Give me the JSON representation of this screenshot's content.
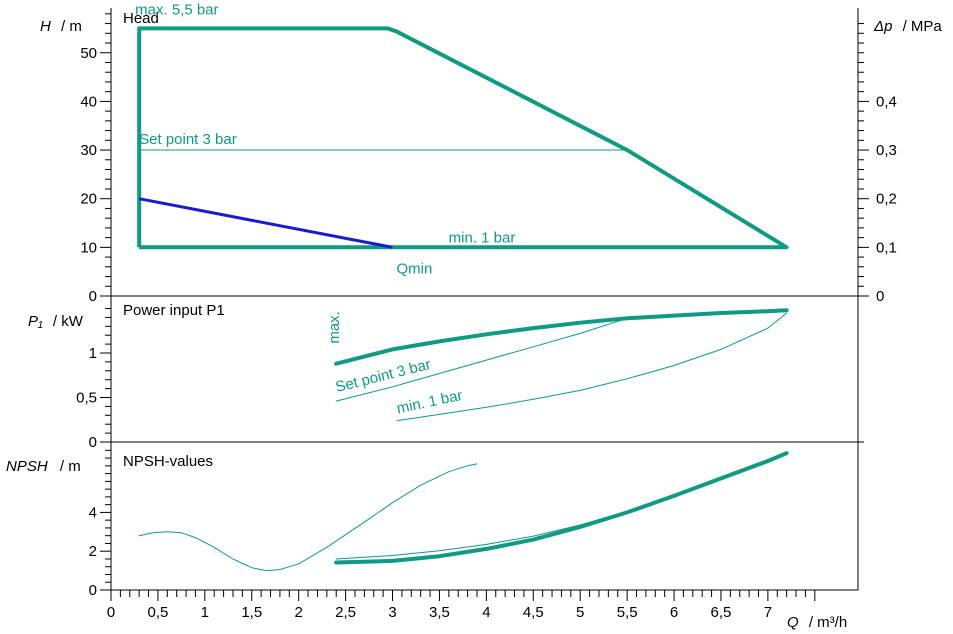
{
  "colors": {
    "teal": "#109a84",
    "blue": "#1a1ad6",
    "axis": "#000000"
  },
  "chart_data": [
    {
      "type": "line",
      "title": "Head",
      "ylabel": "H",
      "yunit": "/ m",
      "y2label": "Δp",
      "y2unit": "/ MPa",
      "xlim": [
        0,
        7.6
      ],
      "ylim": [
        0,
        57.5
      ],
      "yticks": [
        0,
        10,
        20,
        30,
        40,
        50
      ],
      "ytick_labels": [
        "0",
        "10",
        "20",
        "30",
        "40",
        "50"
      ],
      "y2ticks": [
        0,
        0.1,
        0.2,
        0.3,
        0.4
      ],
      "y2tick_labels": [
        "0",
        "0,1",
        "0,2",
        "0,3",
        "0,4"
      ],
      "series": [
        {
          "key": "max",
          "width": 4,
          "color": "teal",
          "points": [
            [
              0.3,
              10
            ],
            [
              0.3,
              55
            ],
            [
              2.95,
              55
            ],
            [
              3.05,
              54.3
            ],
            [
              5.5,
              30
            ],
            [
              7.2,
              10
            ],
            [
              0.3,
              10
            ]
          ]
        },
        {
          "key": "set",
          "width": 1,
          "color": "teal",
          "points": [
            [
              0.3,
              30
            ],
            [
              5.5,
              30
            ]
          ]
        },
        {
          "key": "qmin",
          "width": 3,
          "color": "blue",
          "points": [
            [
              0.3,
              20
            ],
            [
              3.0,
              10
            ]
          ]
        }
      ],
      "annotations": [
        {
          "text": "max. 5,5 bar",
          "x": 0.3,
          "y": 55,
          "color": "teal"
        },
        {
          "text": "Set point 3 bar",
          "x": 0.3,
          "y": 30,
          "color": "teal"
        },
        {
          "text": "min. 1 bar",
          "x": 3.3,
          "y": 10,
          "color": "teal"
        },
        {
          "text": "Qmin",
          "x": 3.0,
          "y": 10,
          "color": "teal"
        }
      ]
    },
    {
      "type": "line",
      "title": "Power input P1",
      "ylabel": "P₁",
      "yunit": "/ kW",
      "xlim": [
        0,
        7.6
      ],
      "ylim": [
        0,
        1.5
      ],
      "yticks": [
        0,
        0.5,
        1
      ],
      "ytick_labels": [
        "0",
        "0,5",
        "1"
      ],
      "series": [
        {
          "key": "max",
          "width": 4,
          "color": "teal",
          "points": [
            [
              2.4,
              0.88
            ],
            [
              3.0,
              1.04
            ],
            [
              3.5,
              1.13
            ],
            [
              4.0,
              1.21
            ],
            [
              4.5,
              1.28
            ],
            [
              5.0,
              1.34
            ],
            [
              5.5,
              1.39
            ],
            [
              6.0,
              1.42
            ],
            [
              6.5,
              1.45
            ],
            [
              7.0,
              1.47
            ],
            [
              7.2,
              1.48
            ]
          ]
        },
        {
          "key": "set",
          "width": 1,
          "color": "teal",
          "points": [
            [
              2.4,
              0.46
            ],
            [
              3.0,
              0.62
            ],
            [
              3.5,
              0.77
            ],
            [
              4.0,
              0.92
            ],
            [
              4.5,
              1.07
            ],
            [
              5.0,
              1.22
            ],
            [
              5.5,
              1.39
            ]
          ]
        },
        {
          "key": "min",
          "width": 1,
          "color": "teal",
          "points": [
            [
              3.05,
              0.24
            ],
            [
              3.5,
              0.31
            ],
            [
              4.0,
              0.39
            ],
            [
              4.5,
              0.48
            ],
            [
              5.0,
              0.58
            ],
            [
              5.5,
              0.71
            ],
            [
              6.0,
              0.86
            ],
            [
              6.5,
              1.04
            ],
            [
              7.0,
              1.28
            ],
            [
              7.2,
              1.45
            ]
          ]
        }
      ],
      "annotations": [
        {
          "text": "max.",
          "x": 2.45,
          "y": 1.15,
          "rotate": -90,
          "color": "teal"
        },
        {
          "text": "Set point 3 bar",
          "x": 2.45,
          "y": 0.56,
          "rotate": -14,
          "color": "teal"
        },
        {
          "text": "min. 1 bar",
          "x": 3.1,
          "y": 0.32,
          "rotate": -12,
          "color": "teal"
        }
      ]
    },
    {
      "type": "line",
      "title": "NPSH-values",
      "ylabel": "NPSH",
      "yunit": "/ m",
      "xlim": [
        0,
        7.6
      ],
      "ylim": [
        0,
        7.4
      ],
      "yticks": [
        0,
        2,
        4
      ],
      "ytick_labels": [
        "0",
        "2",
        "4"
      ],
      "series": [
        {
          "key": "thin",
          "width": 1,
          "color": "teal",
          "points": [
            [
              0.3,
              2.8
            ],
            [
              0.45,
              2.95
            ],
            [
              0.6,
              3.0
            ],
            [
              0.75,
              2.95
            ],
            [
              0.9,
              2.7
            ],
            [
              1.1,
              2.2
            ],
            [
              1.3,
              1.6
            ],
            [
              1.5,
              1.15
            ],
            [
              1.65,
              1.0
            ],
            [
              1.8,
              1.05
            ],
            [
              2.0,
              1.35
            ],
            [
              2.3,
              2.2
            ],
            [
              2.7,
              3.5
            ],
            [
              3.0,
              4.5
            ],
            [
              3.3,
              5.4
            ],
            [
              3.6,
              6.1
            ],
            [
              3.8,
              6.4
            ],
            [
              3.9,
              6.5
            ]
          ]
        },
        {
          "key": "set",
          "width": 1,
          "color": "teal",
          "points": [
            [
              2.4,
              1.6
            ],
            [
              3.0,
              1.78
            ],
            [
              3.5,
              2.02
            ],
            [
              4.0,
              2.35
            ],
            [
              4.5,
              2.78
            ],
            [
              5.0,
              3.35
            ],
            [
              5.5,
              4.05
            ]
          ]
        },
        {
          "key": "max",
          "width": 4,
          "color": "teal",
          "points": [
            [
              2.4,
              1.42
            ],
            [
              3.0,
              1.5
            ],
            [
              3.5,
              1.74
            ],
            [
              4.0,
              2.12
            ],
            [
              4.5,
              2.6
            ],
            [
              5.0,
              3.25
            ],
            [
              5.5,
              4.0
            ],
            [
              6.0,
              4.85
            ],
            [
              6.5,
              5.75
            ],
            [
              7.0,
              6.65
            ],
            [
              7.2,
              7.05
            ]
          ]
        }
      ],
      "annotations": []
    }
  ],
  "x_axis": {
    "label": "Q",
    "unit": "/ m³/h",
    "ticks": [
      0,
      0.5,
      1,
      1.5,
      2,
      2.5,
      3,
      3.5,
      4,
      4.5,
      5,
      5.5,
      6,
      6.5,
      7
    ],
    "tick_labels": [
      "0",
      "0,5",
      "1",
      "1,5",
      "2",
      "2,5",
      "3",
      "3,5",
      "4",
      "4,5",
      "5",
      "5,5",
      "6",
      "6,5",
      "7"
    ]
  }
}
